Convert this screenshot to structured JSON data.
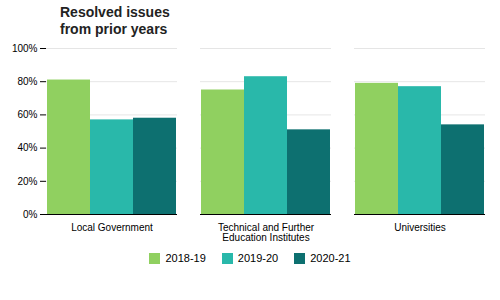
{
  "chart_data": {
    "type": "bar",
    "title": "Resolved issues\nfrom prior years",
    "categories": [
      "Local Government",
      "Technical and Further\nEducation Institutes",
      "Universities"
    ],
    "series": [
      {
        "name": "2018-19",
        "color": "#90D060",
        "values": [
          81,
          75,
          79
        ]
      },
      {
        "name": "2019-20",
        "color": "#29B8AA",
        "values": [
          57,
          83,
          77
        ]
      },
      {
        "name": "2020-21",
        "color": "#0D7070",
        "values": [
          58,
          51,
          54
        ]
      }
    ],
    "ylim": [
      0,
      100
    ],
    "yticks": [
      {
        "value": 0,
        "label": "0%"
      },
      {
        "value": 20,
        "label": "20%"
      },
      {
        "value": 40,
        "label": "40%"
      },
      {
        "value": 60,
        "label": "60%"
      },
      {
        "value": 80,
        "label": "80%"
      },
      {
        "value": 100,
        "label": "100%"
      }
    ],
    "grid": true,
    "legend": "bottom"
  }
}
